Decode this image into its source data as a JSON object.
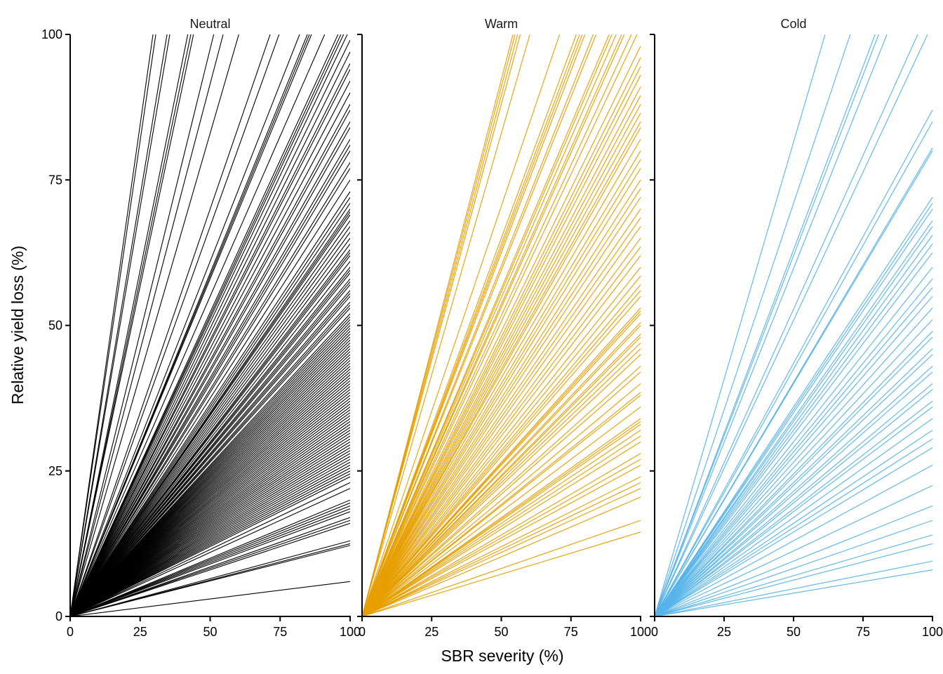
{
  "chart_data": {
    "type": "line",
    "description": "Faceted plot of linear yield-loss curves (y = slope * x / 100) from the origin, one line per study",
    "xlabel": "SBR severity (%)",
    "ylabel": "Relative yield loss (%)",
    "xlim": [
      0,
      100
    ],
    "ylim": [
      0,
      100
    ],
    "x_ticks": [
      "0",
      "25",
      "50",
      "75",
      "100"
    ],
    "y_ticks": [
      "0",
      "25",
      "50",
      "75",
      "100"
    ],
    "grid": false,
    "legend": "none",
    "panels": [
      {
        "name": "Neutral",
        "color": "#000000",
        "yield_loss_at_100_severity": [
          338,
          327,
          289,
          281,
          238,
          232,
          227,
          195,
          183,
          166,
          140,
          134,
          122,
          118,
          117,
          116,
          110,
          104.5,
          103.4,
          102.4,
          101,
          99,
          97,
          95,
          94,
          92,
          90,
          88,
          87,
          85,
          84,
          82,
          81,
          80,
          78,
          77,
          75,
          73,
          72,
          71,
          70,
          69.5,
          69,
          68,
          67,
          66,
          65,
          64,
          63,
          62.5,
          62,
          61,
          60,
          59.5,
          59,
          58,
          57.5,
          57,
          56,
          55.5,
          55,
          54,
          53.5,
          53,
          52,
          51.5,
          51,
          50.5,
          50,
          49.5,
          49,
          48.5,
          48,
          47.5,
          47,
          46.5,
          46,
          45.5,
          45,
          44.5,
          44,
          43.5,
          43,
          42.5,
          42,
          41.5,
          41,
          40.5,
          40,
          39.5,
          39,
          38.5,
          38,
          37.5,
          37,
          36.5,
          36,
          35.5,
          35,
          34.5,
          34,
          33.5,
          33,
          32.5,
          32,
          31.5,
          31,
          30.5,
          30,
          29.5,
          29,
          28.5,
          28,
          27.5,
          27,
          26.5,
          26,
          25.5,
          25,
          24.5,
          24,
          23,
          22,
          20,
          19.5,
          19,
          18.5,
          18,
          17,
          16.5,
          16,
          13,
          12.5,
          12.2,
          6
        ]
      },
      {
        "name": "Warm",
        "color": "#E69F00",
        "yield_loss_at_100_severity": [
          184.5,
          182,
          179,
          176,
          166,
          141,
          130,
          128,
          126.5,
          125,
          120.5,
          119,
          112.7,
          111.5,
          109.6,
          107.3,
          106.2,
          103.4,
          101.3,
          98,
          96,
          94.5,
          93,
          91,
          89.5,
          88,
          86.5,
          85,
          84,
          82,
          80,
          78.5,
          77,
          75,
          73.5,
          72,
          70,
          68.5,
          67,
          65,
          63.5,
          62,
          60,
          58.5,
          57,
          56,
          55,
          53,
          52.5,
          52,
          50.5,
          50,
          48.5,
          48,
          47,
          46,
          45,
          43,
          42,
          40,
          38.5,
          38,
          36,
          34,
          33.5,
          33,
          32,
          31,
          30,
          28,
          27,
          26,
          24,
          23,
          22,
          20.5,
          16.5,
          14.5
        ]
      },
      {
        "name": "Cold",
        "color": "#56B4E9",
        "yield_loss_at_100_severity": [
          163,
          142,
          126,
          124,
          119.6,
          105.6,
          101.8,
          87,
          85,
          80.5,
          80,
          72,
          71,
          70,
          68,
          67,
          65.5,
          64,
          62.5,
          60,
          58,
          56.5,
          55,
          53,
          51,
          49,
          48,
          46,
          45,
          43,
          42,
          40,
          39,
          37,
          36,
          34,
          32,
          30.5,
          29,
          26,
          22.5,
          19,
          16.5,
          14,
          12.5,
          9.5,
          8
        ]
      }
    ]
  }
}
